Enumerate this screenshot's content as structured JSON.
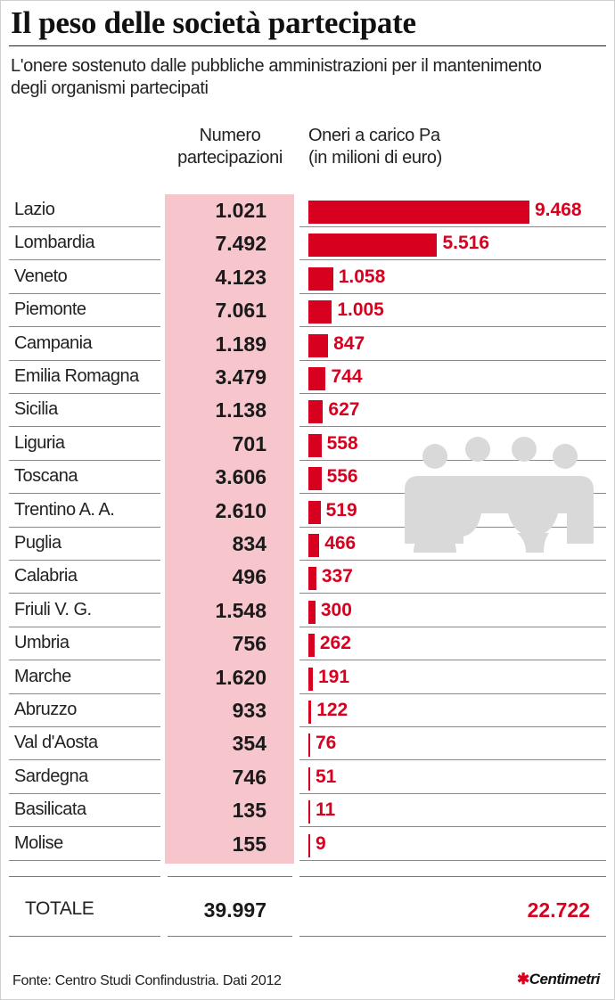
{
  "title": "Il peso delle società partecipate",
  "subtitle": "L'onere sostenuto dalle pubbliche amministrazioni per il mantenimento degli organismi partecipati",
  "columns": {
    "numero_line1": "Numero",
    "numero_line2": "partecipazioni",
    "oneri_line1": "Oneri a carico Pa",
    "oneri_line2": "(in milioni di euro)"
  },
  "chart_data": {
    "type": "bar",
    "categories": [
      "Lazio",
      "Lombardia",
      "Veneto",
      "Piemonte",
      "Campania",
      "Emilia Romagna",
      "Sicilia",
      "Liguria",
      "Toscana",
      "Trentino A. A.",
      "Puglia",
      "Calabria",
      "Friuli V. G.",
      "Umbria",
      "Marche",
      "Abruzzo",
      "Val d'Aosta",
      "Sardegna",
      "Basilicata",
      "Molise"
    ],
    "partecipazioni": [
      "1.021",
      "7.492",
      "4.123",
      "7.061",
      "1.189",
      "3.479",
      "1.138",
      "701",
      "3.606",
      "2.610",
      "834",
      "496",
      "1.548",
      "756",
      "1.620",
      "933",
      "354",
      "746",
      "135",
      "155"
    ],
    "values": [
      9468,
      5516,
      1058,
      1005,
      847,
      744,
      627,
      558,
      556,
      519,
      466,
      337,
      300,
      262,
      191,
      122,
      76,
      51,
      11,
      9
    ],
    "value_labels": [
      "9.468",
      "5.516",
      "1.058",
      "1.005",
      "847",
      "744",
      "627",
      "558",
      "556",
      "519",
      "466",
      "337",
      "300",
      "262",
      "191",
      "122",
      "76",
      "51",
      "11",
      "9"
    ],
    "bar_color": "#d7001f",
    "highlight_color": "#f6c6cc"
  },
  "totals": {
    "label": "TOTALE",
    "partecipazioni": "39.997",
    "oneri": "22.722"
  },
  "footer": {
    "source": "Fonte: Centro Studi Confindustria. Dati 2012",
    "logo": "Centimetri"
  }
}
